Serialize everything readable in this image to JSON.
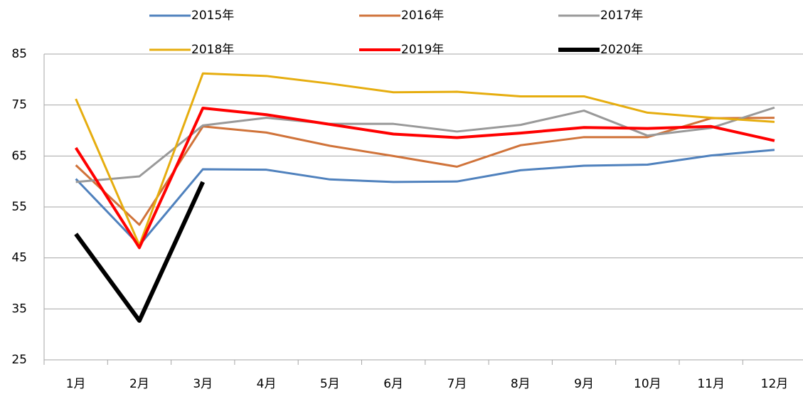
{
  "chart_data": {
    "type": "line",
    "categories": [
      "1月",
      "2月",
      "3月",
      "4月",
      "5月",
      "6月",
      "7月",
      "8月",
      "9月",
      "10月",
      "11月",
      "12月"
    ],
    "series": [
      {
        "name": "2015年",
        "color": "#4f81bd",
        "width": 3,
        "values": [
          60.5,
          47.5,
          62.4,
          62.3,
          60.4,
          59.9,
          60.0,
          62.2,
          63.1,
          63.3,
          65.1,
          66.2
        ]
      },
      {
        "name": "2016年",
        "color": "#d0733a",
        "width": 3,
        "values": [
          63.2,
          51.5,
          70.8,
          69.6,
          67.0,
          65.0,
          62.9,
          67.1,
          68.7,
          68.7,
          72.4,
          72.5
        ]
      },
      {
        "name": "2017年",
        "color": "#999999",
        "width": 3,
        "values": [
          59.9,
          61.0,
          71.0,
          72.5,
          71.3,
          71.3,
          69.8,
          71.1,
          73.9,
          69.0,
          70.5,
          74.5
        ]
      },
      {
        "name": "2018年",
        "color": "#e6ad0f",
        "width": 3,
        "values": [
          76.2,
          47.5,
          81.2,
          80.7,
          79.2,
          77.5,
          77.6,
          76.7,
          76.7,
          73.5,
          72.5,
          71.7
        ]
      },
      {
        "name": "2019年",
        "color": "#ff0000",
        "width": 4,
        "values": [
          66.6,
          47.0,
          74.4,
          73.1,
          71.2,
          69.3,
          68.6,
          69.5,
          70.6,
          70.4,
          70.8,
          68.0
        ]
      },
      {
        "name": "2020年",
        "color": "#000000",
        "width": 6,
        "values": [
          49.7,
          32.7,
          59.9,
          null,
          null,
          null,
          null,
          null,
          null,
          null,
          null,
          null
        ]
      }
    ],
    "ylim": [
      25,
      85
    ],
    "yticks": [
      25,
      35,
      45,
      55,
      65,
      75,
      85
    ],
    "grid": true,
    "legend": "top"
  }
}
